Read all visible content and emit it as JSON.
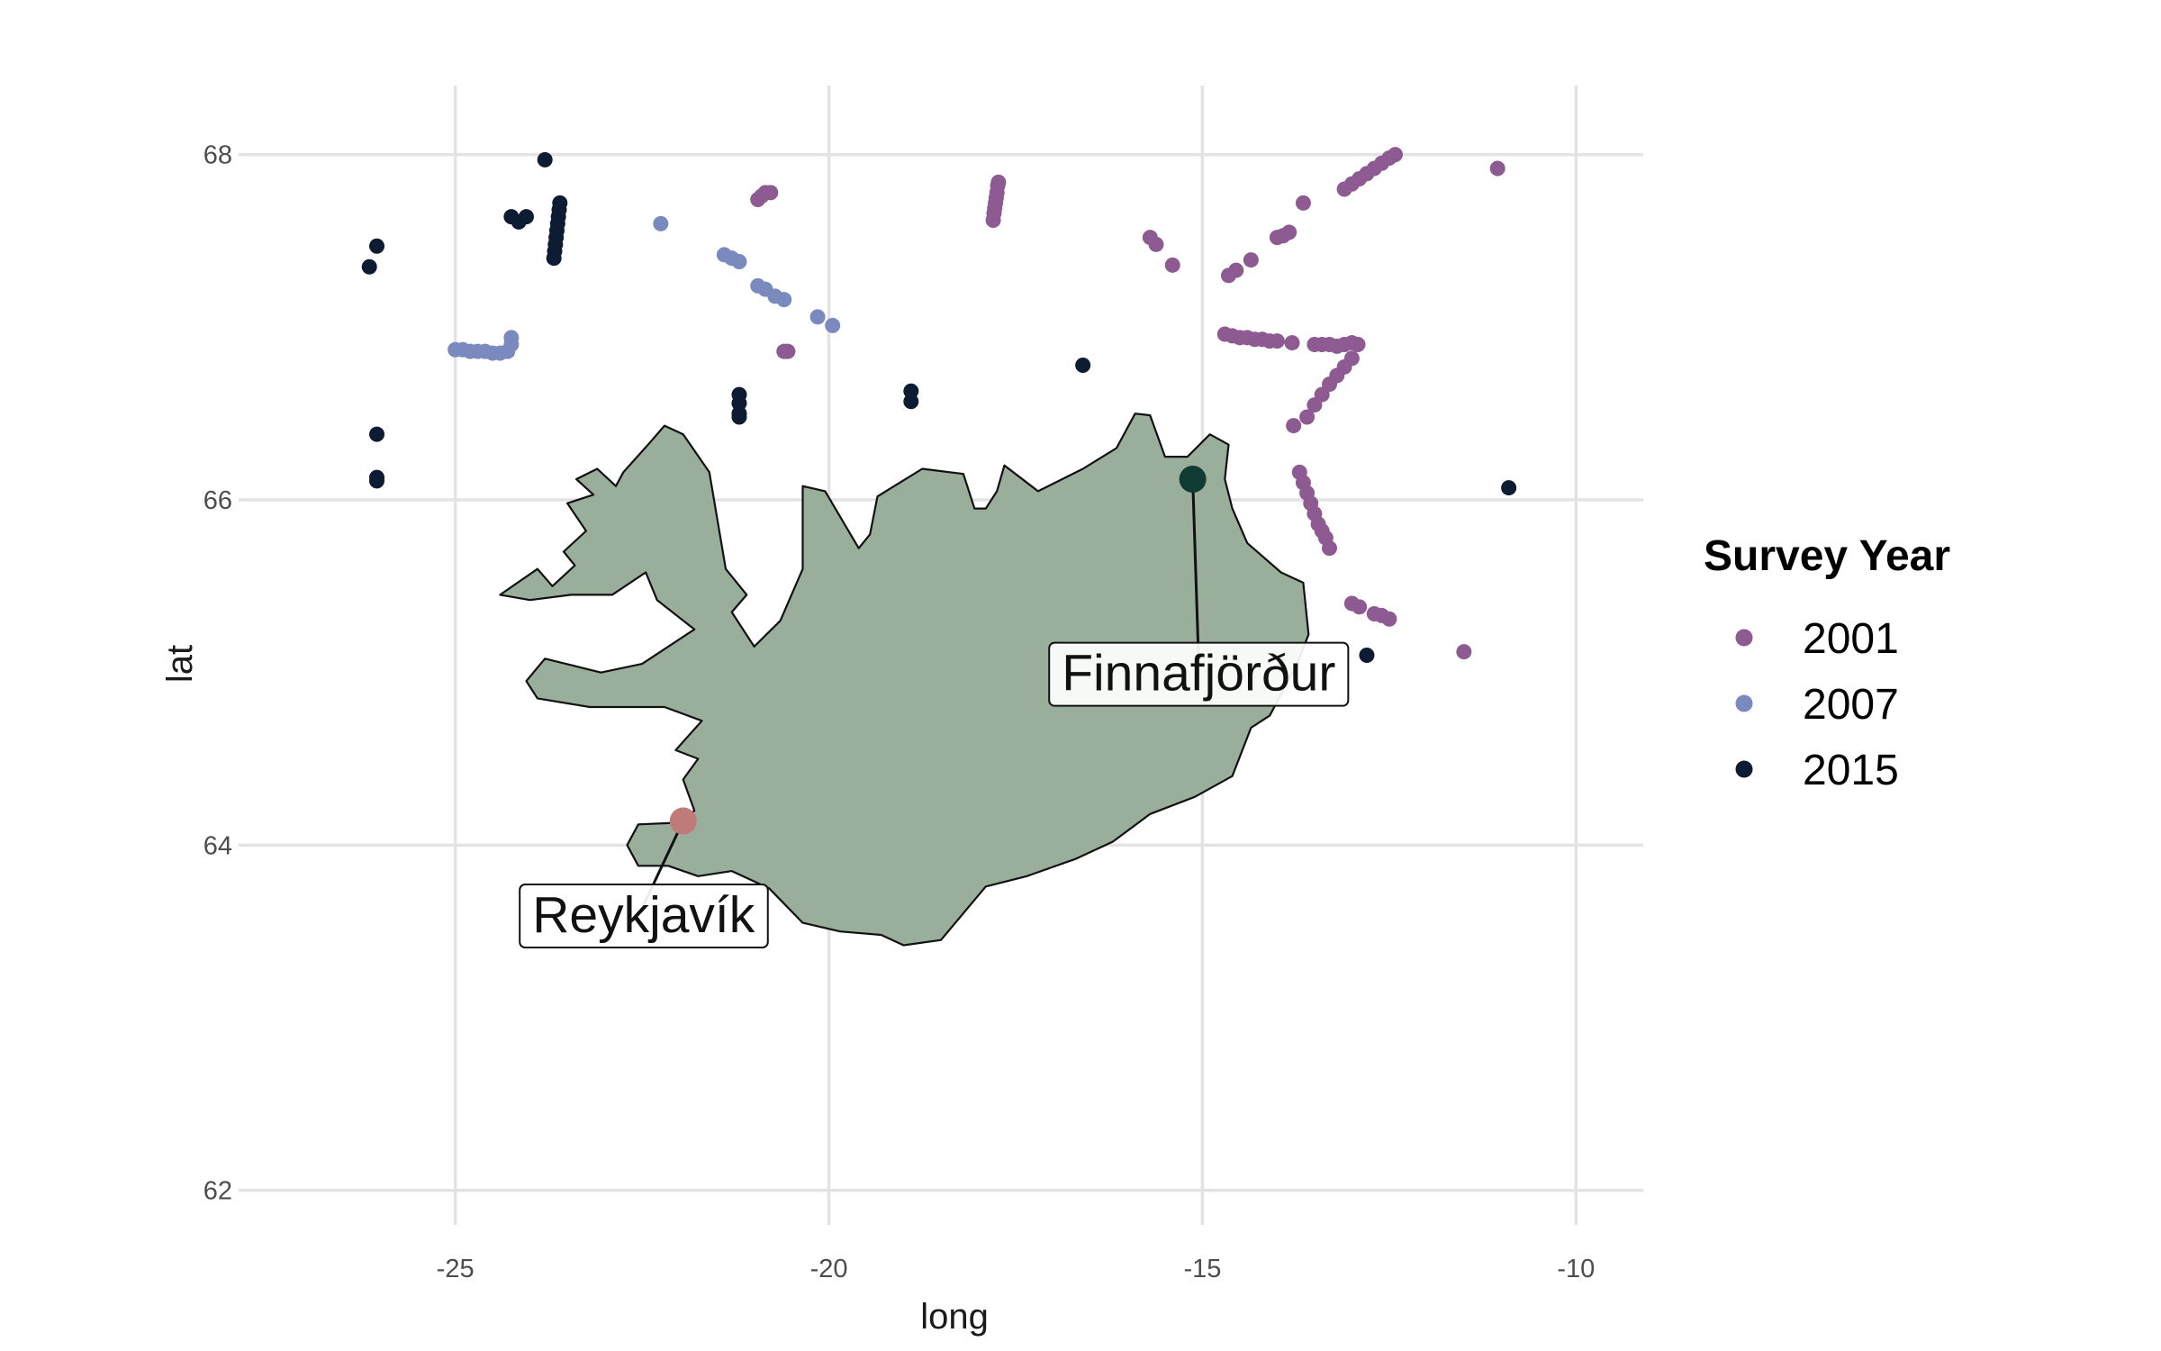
{
  "chart_data": {
    "type": "scatter",
    "map": true,
    "xlabel": "long",
    "ylabel": "lat",
    "xlim": [
      -27.9,
      -9.1
    ],
    "ylim": [
      61.8,
      68.4
    ],
    "x_ticks": [
      -25,
      -20,
      -15,
      -10
    ],
    "y_ticks": [
      62,
      64,
      66,
      68
    ],
    "x_tick_labels": [
      "-25",
      "-20",
      "-15",
      "-10"
    ],
    "y_tick_labels": [
      "62",
      "64",
      "66",
      "68"
    ],
    "grid": true,
    "land_color": "#9aaf9b",
    "legend": {
      "title": "Survey Year",
      "position": "right"
    },
    "series": [
      {
        "name": "2001",
        "color": "#8d5a92",
        "points": [
          [
            -20.95,
            67.74
          ],
          [
            -20.9,
            67.76
          ],
          [
            -20.85,
            67.78
          ],
          [
            -20.78,
            67.78
          ],
          [
            -20.6,
            66.86
          ],
          [
            -20.55,
            66.86
          ],
          [
            -17.8,
            67.62
          ],
          [
            -17.79,
            67.66
          ],
          [
            -17.78,
            67.69
          ],
          [
            -17.77,
            67.72
          ],
          [
            -17.76,
            67.75
          ],
          [
            -17.75,
            67.78
          ],
          [
            -17.74,
            67.82
          ],
          [
            -17.73,
            67.84
          ],
          [
            -15.7,
            67.52
          ],
          [
            -15.62,
            67.48
          ],
          [
            -15.4,
            67.36
          ],
          [
            -14.65,
            67.3
          ],
          [
            -14.55,
            67.33
          ],
          [
            -14.35,
            67.39
          ],
          [
            -14.0,
            67.52
          ],
          [
            -13.92,
            67.53
          ],
          [
            -13.84,
            67.55
          ],
          [
            -13.65,
            67.72
          ],
          [
            -13.1,
            67.8
          ],
          [
            -13.0,
            67.83
          ],
          [
            -12.9,
            67.86
          ],
          [
            -12.8,
            67.89
          ],
          [
            -12.7,
            67.92
          ],
          [
            -12.6,
            67.95
          ],
          [
            -12.5,
            67.98
          ],
          [
            -12.42,
            68.0
          ],
          [
            -11.05,
            67.92
          ],
          [
            -14.7,
            66.96
          ],
          [
            -14.6,
            66.95
          ],
          [
            -14.5,
            66.94
          ],
          [
            -14.4,
            66.94
          ],
          [
            -14.3,
            66.93
          ],
          [
            -14.2,
            66.93
          ],
          [
            -14.1,
            66.92
          ],
          [
            -14.0,
            66.92
          ],
          [
            -13.8,
            66.91
          ],
          [
            -13.5,
            66.9
          ],
          [
            -13.4,
            66.9
          ],
          [
            -13.3,
            66.9
          ],
          [
            -13.2,
            66.89
          ],
          [
            -13.1,
            66.9
          ],
          [
            -13.0,
            66.91
          ],
          [
            -12.92,
            66.9
          ],
          [
            -13.78,
            66.43
          ],
          [
            -13.6,
            66.48
          ],
          [
            -13.5,
            66.55
          ],
          [
            -13.4,
            66.61
          ],
          [
            -13.3,
            66.67
          ],
          [
            -13.2,
            66.72
          ],
          [
            -13.1,
            66.77
          ],
          [
            -13.0,
            66.82
          ],
          [
            -13.7,
            66.16
          ],
          [
            -13.65,
            66.1
          ],
          [
            -13.6,
            66.04
          ],
          [
            -13.55,
            65.98
          ],
          [
            -13.5,
            65.92
          ],
          [
            -13.45,
            65.86
          ],
          [
            -13.4,
            65.82
          ],
          [
            -13.35,
            65.78
          ],
          [
            -13.3,
            65.72
          ],
          [
            -13.0,
            65.4
          ],
          [
            -12.9,
            65.38
          ],
          [
            -12.7,
            65.34
          ],
          [
            -12.6,
            65.33
          ],
          [
            -12.5,
            65.31
          ],
          [
            -11.5,
            65.12
          ]
        ]
      },
      {
        "name": "2007",
        "color": "#7b8abe",
        "points": [
          [
            -22.25,
            67.6
          ],
          [
            -21.4,
            67.42
          ],
          [
            -21.3,
            67.4
          ],
          [
            -21.2,
            67.38
          ],
          [
            -20.95,
            67.24
          ],
          [
            -20.85,
            67.22
          ],
          [
            -20.72,
            67.18
          ],
          [
            -20.6,
            67.16
          ],
          [
            -20.15,
            67.06
          ],
          [
            -19.95,
            67.01
          ],
          [
            -25.0,
            66.87
          ],
          [
            -24.9,
            66.87
          ],
          [
            -24.8,
            66.86
          ],
          [
            -24.7,
            66.86
          ],
          [
            -24.6,
            66.86
          ],
          [
            -24.5,
            66.85
          ],
          [
            -24.4,
            66.85
          ],
          [
            -24.3,
            66.86
          ],
          [
            -24.25,
            66.9
          ],
          [
            -24.25,
            66.94
          ]
        ]
      },
      {
        "name": "2015",
        "color": "#0d1b33",
        "points": [
          [
            -23.8,
            67.97
          ],
          [
            -24.25,
            67.64
          ],
          [
            -24.15,
            67.61
          ],
          [
            -24.05,
            67.64
          ],
          [
            -23.6,
            67.72
          ],
          [
            -23.61,
            67.68
          ],
          [
            -23.62,
            67.64
          ],
          [
            -23.63,
            67.6
          ],
          [
            -23.64,
            67.56
          ],
          [
            -23.65,
            67.52
          ],
          [
            -23.66,
            67.48
          ],
          [
            -23.67,
            67.44
          ],
          [
            -23.68,
            67.4
          ],
          [
            -26.05,
            67.47
          ],
          [
            -26.15,
            67.35
          ],
          [
            -26.05,
            66.38
          ],
          [
            -26.05,
            66.13
          ],
          [
            -26.05,
            66.11
          ],
          [
            -21.2,
            66.61
          ],
          [
            -21.2,
            66.56
          ],
          [
            -21.2,
            66.5
          ],
          [
            -21.2,
            66.48
          ],
          [
            -18.9,
            66.63
          ],
          [
            -18.9,
            66.57
          ],
          [
            -16.6,
            66.78
          ],
          [
            -10.9,
            66.07
          ],
          [
            -12.8,
            65.1
          ]
        ]
      }
    ],
    "annotations": [
      {
        "label": "Reykjavík",
        "long": -21.95,
        "lat": 64.14,
        "marker_color": "#c07b78",
        "label_long": -22.48,
        "label_lat": 63.6
      },
      {
        "label": "Finnafjörður",
        "long": -15.13,
        "lat": 66.12,
        "marker_color": "#0f3b33",
        "label_long": -15.05,
        "label_lat": 65.0
      }
    ],
    "coastline": [
      [
        -24.4,
        65.45
      ],
      [
        -23.9,
        65.6
      ],
      [
        -23.7,
        65.5
      ],
      [
        -23.4,
        65.62
      ],
      [
        -23.55,
        65.7
      ],
      [
        -23.25,
        65.82
      ],
      [
        -23.5,
        65.98
      ],
      [
        -23.15,
        66.03
      ],
      [
        -23.38,
        66.12
      ],
      [
        -23.1,
        66.18
      ],
      [
        -22.85,
        66.08
      ],
      [
        -22.75,
        66.16
      ],
      [
        -22.4,
        66.33
      ],
      [
        -22.2,
        66.43
      ],
      [
        -21.95,
        66.38
      ],
      [
        -21.6,
        66.16
      ],
      [
        -21.38,
        65.6
      ],
      [
        -21.1,
        65.45
      ],
      [
        -21.3,
        65.35
      ],
      [
        -21.0,
        65.15
      ],
      [
        -20.65,
        65.3
      ],
      [
        -20.35,
        65.6
      ],
      [
        -20.35,
        66.08
      ],
      [
        -20.05,
        66.05
      ],
      [
        -19.6,
        65.72
      ],
      [
        -19.45,
        65.8
      ],
      [
        -19.35,
        66.02
      ],
      [
        -19.05,
        66.1
      ],
      [
        -18.75,
        66.18
      ],
      [
        -18.2,
        66.15
      ],
      [
        -18.05,
        65.95
      ],
      [
        -17.9,
        65.95
      ],
      [
        -17.75,
        66.05
      ],
      [
        -17.65,
        66.2
      ],
      [
        -17.2,
        66.05
      ],
      [
        -16.6,
        66.18
      ],
      [
        -16.15,
        66.3
      ],
      [
        -15.9,
        66.5
      ],
      [
        -15.7,
        66.49
      ],
      [
        -15.5,
        66.25
      ],
      [
        -15.2,
        66.25
      ],
      [
        -14.9,
        66.38
      ],
      [
        -14.65,
        66.32
      ],
      [
        -14.7,
        66.12
      ],
      [
        -14.6,
        65.95
      ],
      [
        -14.4,
        65.75
      ],
      [
        -13.95,
        65.58
      ],
      [
        -13.65,
        65.52
      ],
      [
        -13.58,
        65.22
      ],
      [
        -13.75,
        65.03
      ],
      [
        -14.1,
        64.75
      ],
      [
        -14.35,
        64.68
      ],
      [
        -14.6,
        64.4
      ],
      [
        -15.1,
        64.28
      ],
      [
        -15.7,
        64.18
      ],
      [
        -16.2,
        64.02
      ],
      [
        -16.7,
        63.92
      ],
      [
        -17.35,
        63.82
      ],
      [
        -17.9,
        63.76
      ],
      [
        -18.5,
        63.45
      ],
      [
        -19.0,
        63.42
      ],
      [
        -19.3,
        63.48
      ],
      [
        -19.85,
        63.5
      ],
      [
        -20.35,
        63.55
      ],
      [
        -20.8,
        63.75
      ],
      [
        -21.3,
        63.85
      ],
      [
        -21.75,
        63.82
      ],
      [
        -22.15,
        63.88
      ],
      [
        -22.55,
        63.88
      ],
      [
        -22.7,
        64.0
      ],
      [
        -22.55,
        64.12
      ],
      [
        -22.0,
        64.13
      ],
      [
        -21.8,
        64.2
      ],
      [
        -21.95,
        64.38
      ],
      [
        -21.75,
        64.5
      ],
      [
        -22.05,
        64.55
      ],
      [
        -21.7,
        64.72
      ],
      [
        -22.2,
        64.8
      ],
      [
        -23.2,
        64.8
      ],
      [
        -23.9,
        64.85
      ],
      [
        -24.05,
        64.95
      ],
      [
        -23.8,
        65.08
      ],
      [
        -23.05,
        65.0
      ],
      [
        -22.5,
        65.05
      ],
      [
        -21.8,
        65.25
      ],
      [
        -22.3,
        65.42
      ],
      [
        -22.45,
        65.58
      ],
      [
        -22.9,
        65.45
      ],
      [
        -23.45,
        65.45
      ],
      [
        -24.0,
        65.42
      ]
    ]
  }
}
